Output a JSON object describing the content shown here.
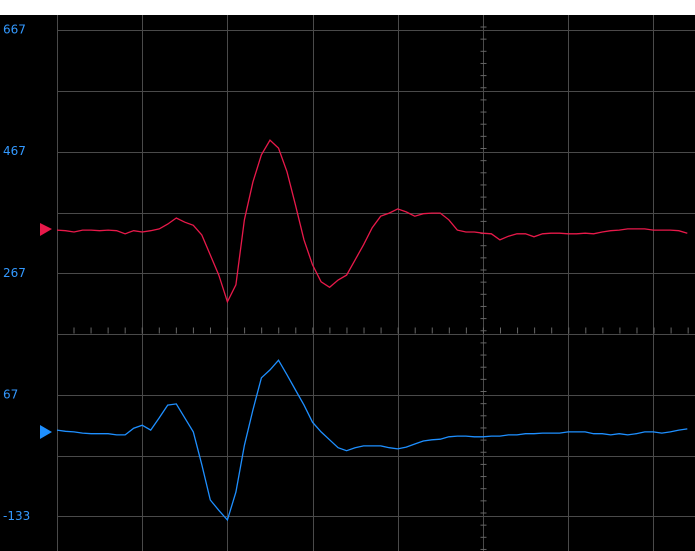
{
  "chart_data": {
    "type": "line",
    "x": [
      0,
      0.1,
      0.2,
      0.3,
      0.4,
      0.5,
      0.6,
      0.7,
      0.8,
      0.9,
      1,
      1.1,
      1.2,
      1.3,
      1.4,
      1.5,
      1.6,
      1.7,
      1.8,
      1.9,
      2,
      2.1,
      2.2,
      2.3,
      2.4,
      2.5,
      2.6,
      2.7,
      2.8,
      2.9,
      3,
      3.1,
      3.2,
      3.3,
      3.4,
      3.5,
      3.6,
      3.7,
      3.8,
      3.9,
      4,
      4.1,
      4.2,
      4.3,
      4.4,
      4.5,
      4.6,
      4.7,
      4.8,
      4.9,
      5,
      5.1,
      5.2,
      5.3,
      5.4,
      5.5,
      5.6,
      5.7,
      5.8,
      5.9,
      6,
      6.1,
      6.2,
      6.3,
      6.4,
      6.5,
      6.6,
      6.7,
      6.8,
      6.9,
      7,
      7.1,
      7.2,
      7.3,
      7.4
    ],
    "series": [
      {
        "color": "#e8194a",
        "values": [
          338,
          337,
          335,
          338,
          338,
          337,
          338,
          337,
          332,
          337,
          335,
          337,
          340,
          348,
          358,
          351,
          346,
          330,
          297,
          264,
          220,
          248,
          355,
          417,
          462,
          486,
          473,
          434,
          379,
          322,
          281,
          253,
          244,
          256,
          264,
          289,
          314,
          342,
          361,
          366,
          373,
          368,
          361,
          365,
          366,
          366,
          355,
          338,
          335,
          335,
          333,
          332,
          322,
          328,
          332,
          332,
          327,
          332,
          333,
          333,
          332,
          332,
          333,
          332,
          335,
          337,
          338,
          340,
          340,
          340,
          338,
          338,
          338,
          337,
          333
        ]
      },
      {
        "color": "#1e8fff",
        "values": [
          9,
          7,
          6,
          4,
          3,
          3,
          3,
          1,
          1,
          12,
          17,
          9,
          29,
          50,
          52,
          29,
          6,
          -48,
          -106,
          -123,
          -139,
          -93,
          -16,
          42,
          95,
          108,
          124,
          100,
          75,
          50,
          22,
          6,
          -7,
          -20,
          -25,
          -20,
          -17,
          -17,
          -17,
          -20,
          -22,
          -19,
          -14,
          -9,
          -7,
          -6,
          -2,
          -1,
          -1,
          -2,
          -2,
          -1,
          -1,
          1,
          1,
          3,
          3,
          4,
          4,
          4,
          6,
          6,
          6,
          3,
          3,
          1,
          3,
          1,
          3,
          6,
          6,
          4,
          6,
          9,
          11
        ]
      }
    ],
    "xlim": [
      0,
      7.49
    ],
    "xticks": [
      0,
      1,
      2,
      3,
      4,
      5,
      6,
      7
    ],
    "ylim": [
      -190,
      692
    ],
    "yticks": [
      667,
      467,
      267,
      67,
      -133
    ],
    "grid": true
  }
}
